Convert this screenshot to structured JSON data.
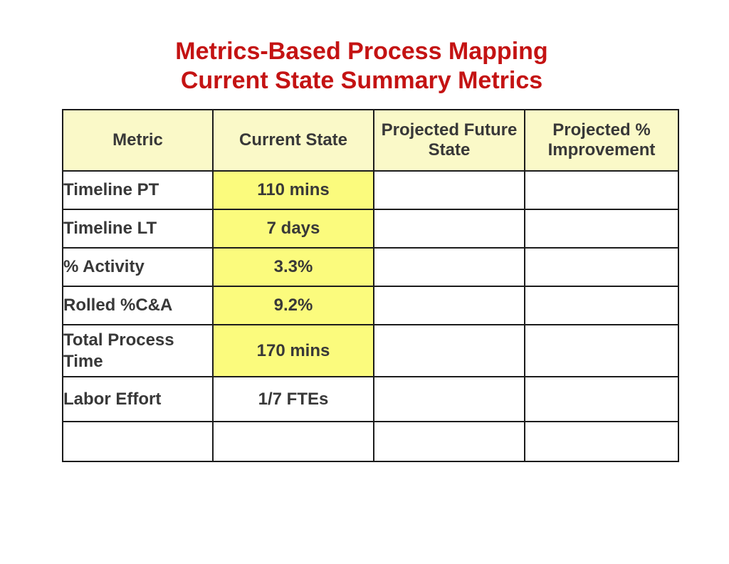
{
  "title": {
    "line1": "Metrics-Based Process Mapping",
    "line2": "Current State Summary Metrics",
    "color": "#c41313"
  },
  "table": {
    "columns": [
      "Metric",
      "Current State",
      "Projected Future State",
      "Projected % Improvement"
    ],
    "rows": [
      {
        "metric": "Timeline PT",
        "current_state": "110 mins",
        "projected_future_state": "",
        "projected_improvement": ""
      },
      {
        "metric": "Timeline LT",
        "current_state": "7 days",
        "projected_future_state": "",
        "projected_improvement": ""
      },
      {
        "metric": "% Activity",
        "current_state": "3.3%",
        "projected_future_state": "",
        "projected_improvement": ""
      },
      {
        "metric": "Rolled %C&A",
        "current_state": "9.2%",
        "projected_future_state": "",
        "projected_improvement": ""
      },
      {
        "metric": "Total Process Time",
        "current_state": "170 mins",
        "projected_future_state": "",
        "projected_improvement": ""
      },
      {
        "metric": "Labor Effort",
        "current_state": "1/7 FTEs",
        "projected_future_state": "",
        "projected_improvement": ""
      },
      {
        "metric": "",
        "current_state": "",
        "projected_future_state": "",
        "projected_improvement": ""
      }
    ],
    "colors": {
      "header_bg": "#faf9c8",
      "highlight_bg": "#fbfb7d",
      "border": "#1c1c1c",
      "text": "#383838"
    }
  }
}
